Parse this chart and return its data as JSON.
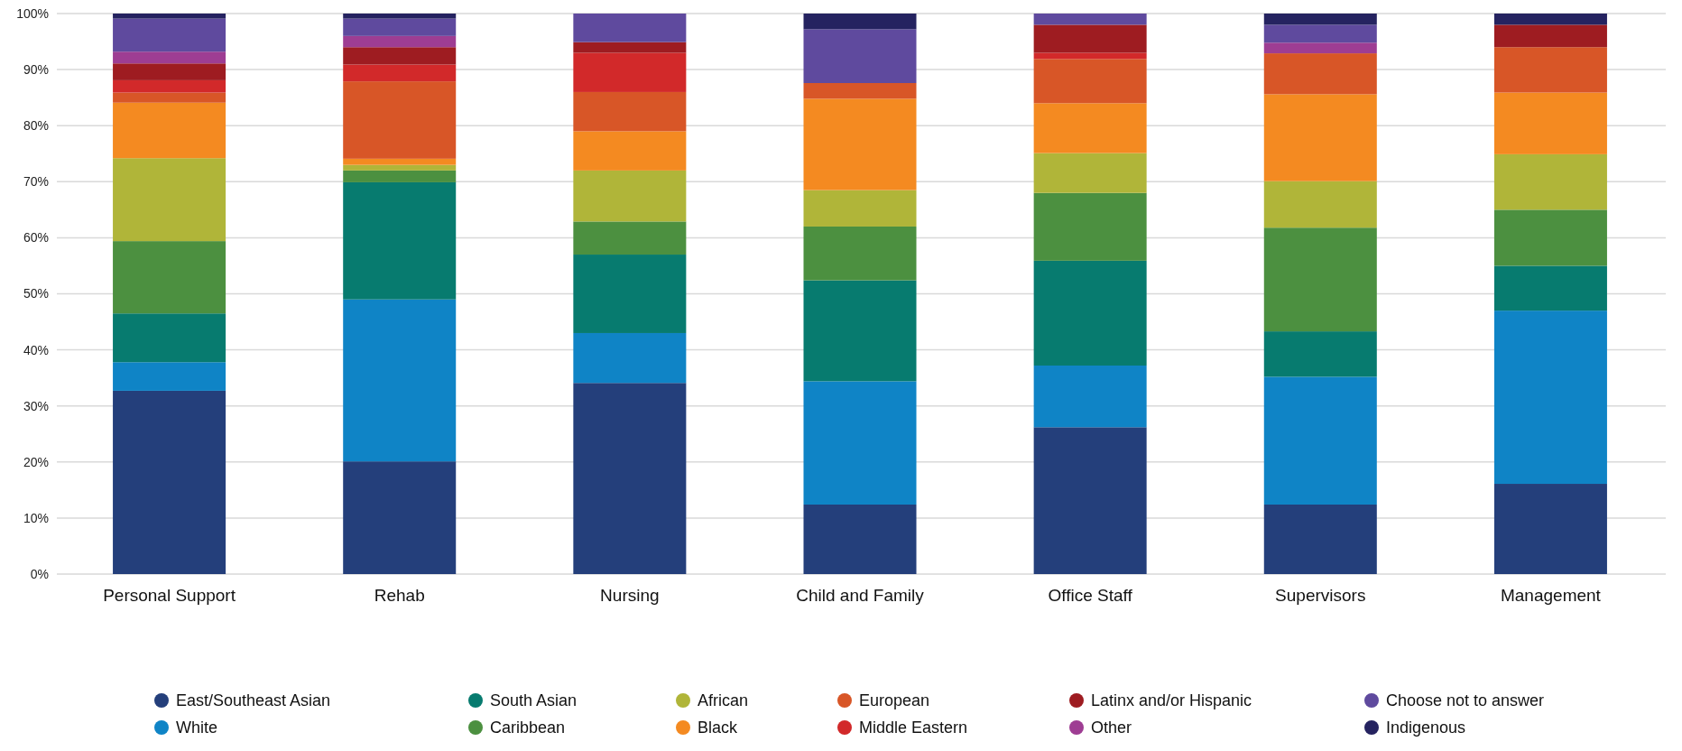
{
  "chart_data": {
    "type": "bar",
    "stacked": true,
    "categories": [
      "Personal Support",
      "Rehab",
      "Nursing",
      "Child and Family",
      "Office Staff",
      "Supervisors",
      "Management"
    ],
    "series": [
      {
        "name": "East/Southeast Asian",
        "color": "#243f7b",
        "values": [
          32.7,
          20.1,
          34.1,
          12.4,
          26.2,
          12.4,
          16.1
        ]
      },
      {
        "name": "White",
        "color": "#0f84c6",
        "values": [
          5.1,
          28.9,
          8.9,
          22.0,
          11.0,
          22.8,
          30.9
        ]
      },
      {
        "name": "South Asian",
        "color": "#077b6f",
        "values": [
          8.7,
          20.9,
          14.0,
          18.0,
          18.7,
          8.1,
          8.0
        ]
      },
      {
        "name": "Caribbean",
        "color": "#4c9040",
        "values": [
          12.9,
          2.1,
          5.9,
          9.6,
          12.1,
          18.5,
          10.0
        ]
      },
      {
        "name": "African",
        "color": "#b0b539",
        "values": [
          14.8,
          1.0,
          9.1,
          6.5,
          7.1,
          8.3,
          9.9
        ]
      },
      {
        "name": "Black",
        "color": "#f48a21",
        "values": [
          9.9,
          1.1,
          7.0,
          16.3,
          8.9,
          15.5,
          11.0
        ]
      },
      {
        "name": "European",
        "color": "#d85627",
        "values": [
          1.8,
          13.8,
          7.0,
          2.8,
          7.9,
          7.3,
          8.1
        ]
      },
      {
        "name": "Middle Eastern",
        "color": "#d2292a",
        "values": [
          2.2,
          3.0,
          7.0,
          null,
          1.1,
          null,
          null
        ]
      },
      {
        "name": "Latinx and/or Hispanic",
        "color": "#9e1c21",
        "values": [
          3.0,
          3.1,
          1.9,
          null,
          5.0,
          null,
          4.0
        ]
      },
      {
        "name": "Other",
        "color": "#9e3d93",
        "values": [
          2.1,
          2.0,
          null,
          null,
          null,
          1.9,
          null
        ]
      },
      {
        "name": "Choose not to answer",
        "color": "#5f4a9e",
        "values": [
          5.9,
          3.1,
          5.1,
          9.6,
          2.0,
          3.2,
          null
        ]
      },
      {
        "name": "Indigenous",
        "color": "#252360",
        "values": [
          0.9,
          0.9,
          null,
          2.8,
          null,
          2.0,
          2.0
        ]
      }
    ],
    "ylim": [
      0,
      100
    ],
    "yticks": [
      {
        "value": 0,
        "label": "0%"
      },
      {
        "value": 10,
        "label": "10%"
      },
      {
        "value": 20,
        "label": "20%"
      },
      {
        "value": 30,
        "label": "30%"
      },
      {
        "value": 40,
        "label": "40%"
      },
      {
        "value": 50,
        "label": "50%"
      },
      {
        "value": 60,
        "label": "60%"
      },
      {
        "value": 70,
        "label": "70%"
      },
      {
        "value": 80,
        "label": "80%"
      },
      {
        "value": 90,
        "label": "90%"
      },
      {
        "value": 100,
        "label": "100%"
      }
    ],
    "grid": "y",
    "legend": "bottom",
    "marker": "circle"
  }
}
